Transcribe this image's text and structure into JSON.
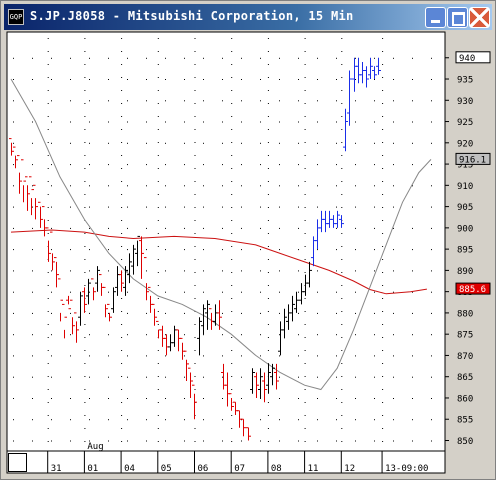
{
  "window": {
    "title": "S.JP.J8058 - Mitsubishi Corporation, 15 Min",
    "icon_text": "GQP"
  },
  "chart_data": {
    "type": "candlestick-bar",
    "title": "S.JP.J8058 - Mitsubishi Corporation, 15 Min",
    "ylim": [
      848,
      943
    ],
    "y_ticks": [
      850,
      855,
      860,
      865,
      870,
      875,
      880,
      885,
      890,
      895,
      900,
      905,
      910,
      915,
      920,
      925,
      930,
      935,
      940
    ],
    "x_labels": [
      "31",
      "01",
      "04",
      "05",
      "06",
      "07",
      "08",
      "11",
      "12",
      "13-09:00"
    ],
    "x_month_label": "Aug",
    "grid": true,
    "price_markers": [
      {
        "value": 940,
        "text": "940",
        "color": "#ffffff"
      },
      {
        "value": 916.1,
        "text": "916.1",
        "color": "#c0c0c0"
      },
      {
        "value": 885.6,
        "text": "885.6",
        "color": "#e00000"
      }
    ],
    "colors": {
      "up": "#000000",
      "down": "#dd0000",
      "latest": "#1a2ee8",
      "ma_slow": "#cc1111",
      "ma_fast": "#888888",
      "background": "#ffffff"
    },
    "series": [
      {
        "name": "slow MA",
        "x": [
          0,
          10,
          18,
          24,
          30,
          40,
          50,
          60,
          66,
          72,
          78,
          84,
          88,
          92,
          98,
          102
        ],
        "values": [
          899,
          899.5,
          899,
          898,
          897.5,
          898,
          897.5,
          896,
          894,
          892,
          890,
          887.5,
          885.5,
          884.5,
          885,
          885.6
        ]
      },
      {
        "name": "fast MA",
        "x": [
          0,
          6,
          12,
          18,
          24,
          30,
          36,
          42,
          48,
          54,
          60,
          66,
          72,
          76,
          80,
          84,
          88,
          92,
          96,
          100,
          103
        ],
        "values": [
          935,
          925,
          912,
          902,
          894,
          888,
          884,
          882,
          879,
          875,
          870,
          866,
          863,
          862,
          867,
          876,
          886,
          896,
          906,
          913,
          916.1
        ]
      }
    ],
    "bars": [
      [
        0,
        921,
        918,
        920,
        917
      ],
      [
        1,
        919,
        916,
        917,
        914
      ],
      [
        2,
        917,
        911,
        913,
        908
      ],
      [
        3,
        916,
        911,
        910,
        906
      ],
      [
        4,
        912,
        908,
        910,
        904
      ],
      [
        5,
        912,
        909,
        907,
        903
      ],
      [
        6,
        910,
        905,
        907,
        902
      ],
      [
        7,
        906,
        902,
        905,
        900
      ],
      [
        8,
        905,
        900,
        902,
        898
      ],
      [
        9,
        900,
        894,
        897,
        892
      ],
      [
        10,
        899,
        892,
        894,
        890
      ],
      [
        11,
        893,
        889,
        892,
        886
      ],
      [
        12,
        888,
        883,
        880,
        878
      ],
      [
        13,
        882,
        879,
        876,
        874
      ],
      [
        14,
        883,
        881,
        884,
        882
      ],
      [
        15,
        883,
        877,
        879,
        875
      ],
      [
        16,
        880,
        876,
        878,
        873
      ],
      [
        17,
        879,
        884,
        885,
        877
      ],
      [
        18,
        885,
        882,
        886,
        880
      ],
      [
        19,
        884,
        887,
        888,
        882
      ],
      [
        20,
        888,
        885,
        886,
        883
      ],
      [
        21,
        887,
        890,
        891,
        885
      ],
      [
        22,
        889,
        886,
        887,
        884
      ],
      [
        23,
        886,
        881,
        882,
        879
      ],
      [
        24,
        882,
        879,
        880,
        878
      ],
      [
        25,
        881,
        885,
        886,
        880
      ],
      [
        26,
        886,
        889,
        891,
        884
      ],
      [
        27,
        889,
        887,
        890,
        885
      ],
      [
        28,
        886,
        890,
        891,
        884
      ],
      [
        29,
        889,
        892,
        894,
        887
      ],
      [
        30,
        891,
        895,
        896,
        889
      ],
      [
        31,
        894,
        898,
        897,
        891
      ],
      [
        32,
        897,
        894,
        898,
        888
      ],
      [
        33,
        893,
        885,
        887,
        883
      ],
      [
        34,
        886,
        882,
        884,
        880
      ],
      [
        35,
        882,
        879,
        881,
        877
      ],
      [
        36,
        878,
        876,
        876,
        874
      ],
      [
        37,
        876,
        874,
        877,
        872
      ],
      [
        38,
        874,
        872,
        875,
        870
      ],
      [
        39,
        872,
        873,
        875,
        871
      ],
      [
        40,
        873,
        876,
        877,
        872
      ],
      [
        41,
        876,
        874,
        876,
        871
      ],
      [
        42,
        874,
        871,
        873,
        869
      ],
      [
        43,
        871,
        868,
        869,
        864
      ],
      [
        44,
        867,
        864,
        866,
        860
      ],
      [
        45,
        863,
        859,
        861,
        855
      ],
      [
        46,
        874,
        878,
        879,
        870
      ],
      [
        47,
        877,
        881,
        882,
        875
      ],
      [
        48,
        880,
        882,
        883,
        876
      ],
      [
        49,
        881,
        878,
        880,
        876
      ],
      [
        50,
        878,
        880,
        882,
        877
      ],
      [
        51,
        880,
        879,
        883,
        876
      ],
      [
        52,
        866,
        863,
        868,
        862
      ],
      [
        53,
        863,
        861,
        866,
        858
      ],
      [
        54,
        861,
        858,
        860,
        857
      ],
      [
        55,
        859,
        857,
        859,
        856
      ],
      [
        56,
        857,
        855,
        857,
        853
      ],
      [
        57,
        855,
        853,
        855,
        851
      ],
      [
        58,
        853,
        851,
        853,
        850
      ],
      [
        59,
        862,
        866,
        867,
        861
      ],
      [
        60,
        865,
        863,
        866,
        860
      ],
      [
        61,
        862,
        865,
        867,
        860
      ],
      [
        62,
        864,
        862,
        866,
        859
      ],
      [
        63,
        863,
        866,
        868,
        861
      ],
      [
        64,
        865,
        867,
        868,
        863
      ],
      [
        65,
        866,
        864,
        868,
        862
      ],
      [
        66,
        871,
        876,
        878,
        870
      ],
      [
        67,
        876,
        879,
        881,
        874
      ],
      [
        68,
        878,
        880,
        882,
        876
      ],
      [
        69,
        880,
        882,
        884,
        878
      ],
      [
        70,
        881,
        883,
        885,
        880
      ],
      [
        71,
        883,
        885,
        887,
        882
      ],
      [
        72,
        885,
        887,
        889,
        884
      ],
      [
        73,
        887,
        890,
        892,
        886
      ],
      [
        74,
        893,
        897,
        898,
        891
      ],
      [
        75,
        897,
        900,
        902,
        895
      ],
      [
        76,
        900,
        902,
        904,
        899
      ],
      [
        77,
        902,
        901,
        904,
        899
      ],
      [
        78,
        901,
        902,
        904,
        900
      ],
      [
        79,
        902,
        901,
        903,
        900
      ],
      [
        80,
        901,
        903,
        904,
        900
      ],
      [
        81,
        902,
        901,
        903,
        900
      ],
      [
        82,
        919,
        925,
        928,
        918
      ],
      [
        83,
        927,
        935,
        937,
        924
      ],
      [
        84,
        935,
        938,
        940,
        932
      ],
      [
        85,
        938,
        936,
        940,
        934
      ],
      [
        86,
        936,
        937,
        939,
        934
      ],
      [
        87,
        937,
        935,
        938,
        933
      ],
      [
        88,
        936,
        938,
        940,
        935
      ],
      [
        89,
        937,
        936,
        938,
        935
      ],
      [
        90,
        938,
        937,
        940,
        936
      ]
    ]
  }
}
